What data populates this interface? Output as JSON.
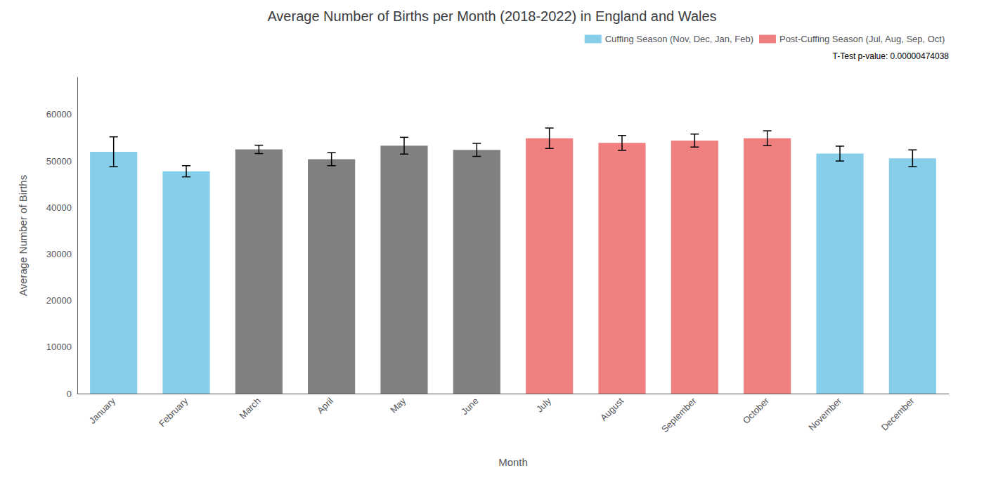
{
  "chart_data": {
    "type": "bar",
    "title": "Average Number of Births per Month (2018-2022) in England and Wales",
    "xlabel": "Month",
    "ylabel": "Average Number of Births",
    "categories": [
      "January",
      "February",
      "March",
      "April",
      "May",
      "June",
      "July",
      "August",
      "September",
      "October",
      "November",
      "December"
    ],
    "values": [
      52000,
      47800,
      52500,
      50400,
      53300,
      52400,
      54900,
      53900,
      54400,
      54900,
      51600,
      50600
    ],
    "errors": [
      3200,
      1200,
      900,
      1400,
      1800,
      1400,
      2200,
      1600,
      1400,
      1600,
      1600,
      1800
    ],
    "colors": [
      "#87CEEB",
      "#87CEEB",
      "#808080",
      "#808080",
      "#808080",
      "#808080",
      "#F08080",
      "#F08080",
      "#F08080",
      "#F08080",
      "#87CEEB",
      "#87CEEB"
    ],
    "legend_entries": [
      {
        "name": "Cuffing Season (Nov, Dec, Jan, Feb)",
        "color": "#87CEEB"
      },
      {
        "name": "Post-Cuffing Season (Jul, Aug, Sep, Oct)",
        "color": "#F08080"
      }
    ],
    "annotations": [
      "T-Test p-value: 0.00000474038"
    ],
    "ylim": [
      0,
      68000
    ],
    "yticks": [
      0,
      10000,
      20000,
      30000,
      40000,
      50000,
      60000
    ],
    "grid": false,
    "legend": "upper right"
  }
}
